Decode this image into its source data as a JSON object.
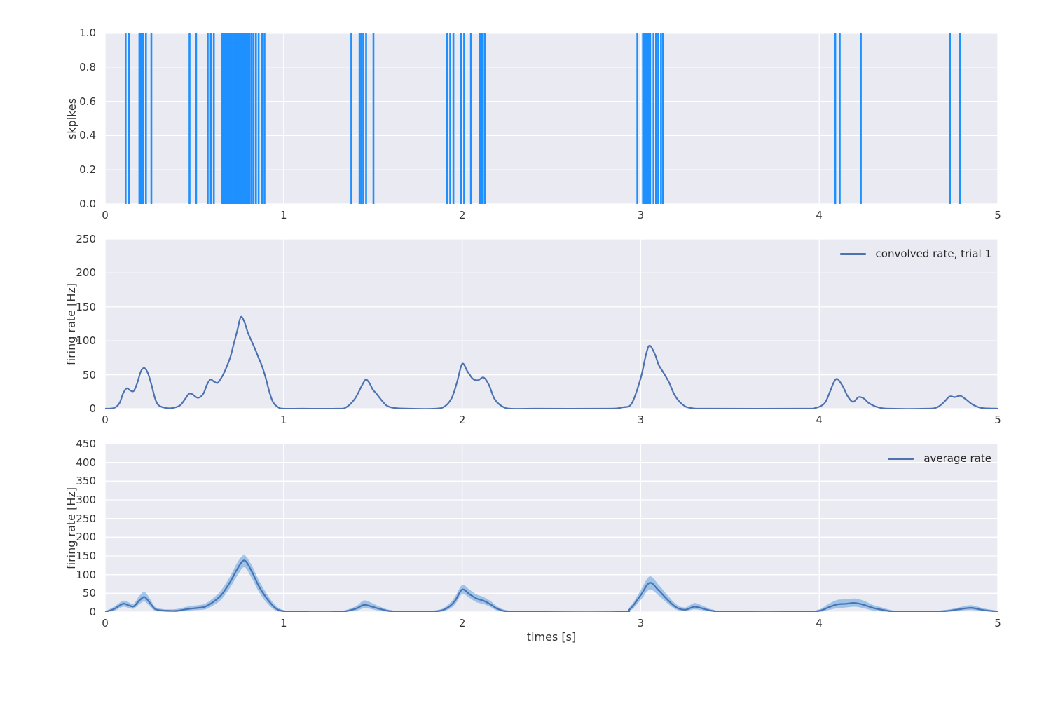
{
  "figure": {
    "background": "#ffffff",
    "axes_background": "#eaeaf2",
    "grid_color": "#ffffff",
    "text_color": "#333333"
  },
  "chart_data": [
    {
      "id": "raster",
      "type": "event-raster",
      "ylabel": "skpikes",
      "xlim": [
        0,
        5
      ],
      "ylim": [
        0.0,
        1.0
      ],
      "xticks": [
        0,
        1,
        2,
        3,
        4,
        5
      ],
      "xtick_labels": [
        "0",
        "1",
        "2",
        "3",
        "4",
        "5"
      ],
      "yticks": [
        0.0,
        0.2,
        0.4,
        0.6,
        0.8,
        1.0
      ],
      "ytick_labels": [
        "0.0",
        "0.2",
        "0.4",
        "0.6",
        "0.8",
        "1.0"
      ],
      "grid": true,
      "spike_color": "#1e90ff",
      "spike_times": [
        0.115,
        0.133,
        0.192,
        0.201,
        0.212,
        0.229,
        0.259,
        0.473,
        0.51,
        0.575,
        0.592,
        0.609,
        0.656,
        0.664,
        0.672,
        0.681,
        0.69,
        0.699,
        0.707,
        0.716,
        0.724,
        0.733,
        0.741,
        0.749,
        0.757,
        0.766,
        0.774,
        0.782,
        0.791,
        0.8,
        0.81,
        0.821,
        0.832,
        0.845,
        0.86,
        0.878,
        0.893,
        1.379,
        1.425,
        1.435,
        1.446,
        1.462,
        1.503,
        1.916,
        1.933,
        1.951,
        1.993,
        2.011,
        2.049,
        2.099,
        2.112,
        2.126,
        2.981,
        3.013,
        3.021,
        3.029,
        3.037,
        3.045,
        3.053,
        3.072,
        3.086,
        3.098,
        3.114,
        3.125,
        4.09,
        4.115,
        4.233,
        4.732,
        4.789
      ]
    },
    {
      "id": "convolved",
      "type": "line",
      "ylabel": "firing rate [Hz]",
      "legend": "convolved rate, trial 1",
      "legend_position": "upper right",
      "line_color": "#4c72b0",
      "xlim": [
        0,
        5
      ],
      "ylim": [
        0,
        250
      ],
      "xticks": [
        0,
        1,
        2,
        3,
        4,
        5
      ],
      "xtick_labels": [
        "0",
        "1",
        "2",
        "3",
        "4",
        "5"
      ],
      "yticks": [
        0,
        50,
        100,
        150,
        200,
        250
      ],
      "ytick_labels": [
        "0",
        "50",
        "100",
        "150",
        "200",
        "250"
      ],
      "grid": true,
      "x": [
        0.0,
        0.05,
        0.08,
        0.1,
        0.12,
        0.14,
        0.16,
        0.18,
        0.2,
        0.22,
        0.24,
        0.26,
        0.28,
        0.3,
        0.34,
        0.38,
        0.42,
        0.45,
        0.47,
        0.49,
        0.52,
        0.55,
        0.57,
        0.59,
        0.61,
        0.63,
        0.65,
        0.67,
        0.7,
        0.72,
        0.74,
        0.76,
        0.78,
        0.8,
        0.82,
        0.84,
        0.86,
        0.88,
        0.9,
        0.92,
        0.94,
        0.97,
        1.0,
        1.1,
        1.3,
        1.35,
        1.4,
        1.44,
        1.46,
        1.48,
        1.5,
        1.52,
        1.55,
        1.58,
        1.62,
        1.7,
        1.85,
        1.9,
        1.94,
        1.97,
        2.0,
        2.03,
        2.06,
        2.09,
        2.12,
        2.15,
        2.18,
        2.22,
        2.27,
        2.4,
        2.8,
        2.9,
        2.95,
        3.0,
        3.03,
        3.05,
        3.08,
        3.1,
        3.13,
        3.16,
        3.19,
        3.23,
        3.28,
        3.4,
        3.9,
        3.98,
        4.03,
        4.06,
        4.08,
        4.1,
        4.13,
        4.16,
        4.19,
        4.22,
        4.25,
        4.28,
        4.33,
        4.4,
        4.6,
        4.66,
        4.7,
        4.73,
        4.76,
        4.79,
        4.82,
        4.86,
        4.91,
        5.0
      ],
      "y": [
        0,
        1,
        8,
        22,
        30,
        27,
        26,
        38,
        55,
        60,
        52,
        35,
        15,
        5,
        1,
        1,
        5,
        15,
        22,
        21,
        16,
        22,
        35,
        43,
        40,
        38,
        45,
        55,
        75,
        95,
        115,
        135,
        128,
        112,
        100,
        88,
        75,
        62,
        45,
        25,
        10,
        2,
        0,
        0,
        0,
        2,
        15,
        35,
        43,
        38,
        28,
        22,
        12,
        4,
        1,
        0,
        0,
        3,
        15,
        38,
        66,
        55,
        44,
        42,
        46,
        35,
        15,
        4,
        0,
        0,
        0,
        2,
        8,
        45,
        80,
        93,
        80,
        65,
        52,
        38,
        20,
        7,
        1,
        0,
        0,
        1,
        8,
        25,
        38,
        44,
        34,
        18,
        10,
        17,
        15,
        8,
        2,
        0,
        0,
        2,
        10,
        18,
        17,
        19,
        14,
        6,
        1,
        0
      ]
    },
    {
      "id": "average",
      "type": "area-line",
      "ylabel": "firing rate [Hz]",
      "xlabel": "times [s]",
      "legend": "average rate",
      "legend_position": "upper right",
      "line_color": "#4c72b0",
      "band_color": "#5fa2e0",
      "band_opacity": 0.55,
      "xlim": [
        0,
        5
      ],
      "ylim": [
        0,
        450
      ],
      "xticks": [
        0,
        1,
        2,
        3,
        4,
        5
      ],
      "xtick_labels": [
        "0",
        "1",
        "2",
        "3",
        "4",
        "5"
      ],
      "yticks": [
        0,
        50,
        100,
        150,
        200,
        250,
        300,
        350,
        400,
        450
      ],
      "ytick_labels": [
        "0",
        "50",
        "100",
        "150",
        "200",
        "250",
        "300",
        "350",
        "400",
        "450"
      ],
      "grid": true,
      "x": [
        0.0,
        0.05,
        0.1,
        0.13,
        0.16,
        0.19,
        0.22,
        0.25,
        0.28,
        0.32,
        0.36,
        0.4,
        0.44,
        0.48,
        0.52,
        0.56,
        0.6,
        0.65,
        0.7,
        0.74,
        0.78,
        0.82,
        0.86,
        0.9,
        0.95,
        1.0,
        1.1,
        1.3,
        1.36,
        1.41,
        1.45,
        1.49,
        1.54,
        1.6,
        1.7,
        1.86,
        1.92,
        1.96,
        2.0,
        2.04,
        2.08,
        2.12,
        2.16,
        2.2,
        2.26,
        2.4,
        2.88,
        2.94,
        3.0,
        3.05,
        3.1,
        3.15,
        3.2,
        3.25,
        3.3,
        3.35,
        3.4,
        3.5,
        3.9,
        4.0,
        4.05,
        4.1,
        4.15,
        4.2,
        4.25,
        4.3,
        4.36,
        4.42,
        4.55,
        4.7,
        4.78,
        4.85,
        4.92,
        5.0
      ],
      "mean": [
        0,
        8,
        22,
        18,
        15,
        30,
        40,
        25,
        8,
        4,
        3,
        3,
        6,
        9,
        11,
        14,
        25,
        45,
        80,
        115,
        138,
        110,
        70,
        40,
        12,
        2,
        0,
        0,
        3,
        10,
        19,
        15,
        8,
        2,
        0,
        2,
        12,
        30,
        60,
        48,
        36,
        30,
        20,
        8,
        1,
        0,
        0,
        8,
        45,
        78,
        58,
        33,
        12,
        6,
        14,
        9,
        3,
        0,
        0,
        3,
        12,
        20,
        22,
        24,
        19,
        11,
        5,
        1,
        0,
        2,
        7,
        11,
        5,
        1
      ],
      "lo": [
        0,
        3,
        14,
        11,
        9,
        20,
        28,
        15,
        3,
        1,
        0,
        0,
        2,
        4,
        5,
        7,
        16,
        33,
        65,
        97,
        120,
        92,
        55,
        28,
        5,
        0,
        0,
        0,
        1,
        4,
        10,
        8,
        3,
        0,
        0,
        0,
        6,
        20,
        48,
        38,
        26,
        21,
        13,
        3,
        0,
        0,
        0,
        3,
        32,
        60,
        44,
        23,
        6,
        2,
        7,
        4,
        1,
        0,
        0,
        0,
        5,
        10,
        12,
        14,
        10,
        4,
        1,
        0,
        0,
        0,
        3,
        5,
        2,
        0
      ],
      "hi": [
        2,
        14,
        30,
        26,
        22,
        42,
        54,
        36,
        14,
        8,
        7,
        8,
        12,
        16,
        18,
        22,
        35,
        58,
        95,
        132,
        152,
        126,
        86,
        53,
        20,
        5,
        0,
        2,
        7,
        17,
        31,
        25,
        14,
        5,
        0,
        5,
        19,
        41,
        72,
        60,
        47,
        40,
        29,
        14,
        4,
        0,
        1,
        14,
        58,
        95,
        73,
        45,
        20,
        12,
        24,
        16,
        7,
        0,
        1,
        7,
        21,
        32,
        34,
        36,
        30,
        19,
        11,
        4,
        0,
        5,
        12,
        18,
        10,
        3
      ]
    }
  ]
}
